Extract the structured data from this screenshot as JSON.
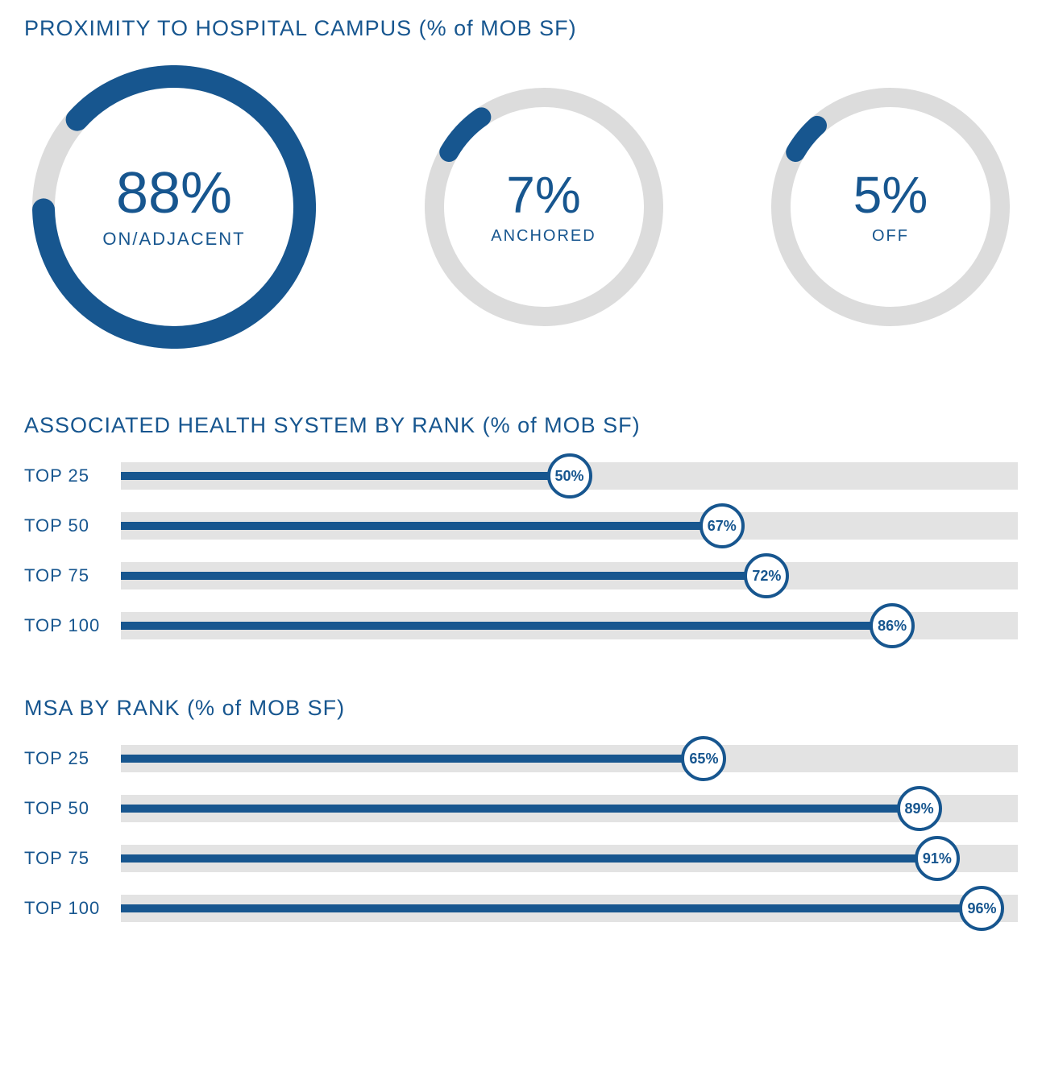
{
  "colors": {
    "primary": "#17568f",
    "track": "#e3e3e3",
    "donut_bg": "#dcdcdc",
    "white": "#ffffff"
  },
  "proximity": {
    "title": "PROXIMITY TO HOSPITAL CAMPUS (% of MOB SF)",
    "donut_style": {
      "track_width_main": 28,
      "track_width_sub": 24,
      "start_angle_deg": -60,
      "gap_deg_main": 12,
      "gap_deg_sub": 0
    },
    "items": [
      {
        "value": 88,
        "display": "88%",
        "label": "ON/ADJACENT",
        "diameter": 352,
        "value_fontsize": 72,
        "label_fontsize": 22,
        "is_main": true
      },
      {
        "value": 7,
        "display": "7%",
        "label": "ANCHORED",
        "diameter": 296,
        "value_fontsize": 64,
        "label_fontsize": 20,
        "is_main": false
      },
      {
        "value": 5,
        "display": "5%",
        "label": "OFF",
        "diameter": 296,
        "value_fontsize": 64,
        "label_fontsize": 20,
        "is_main": false
      }
    ]
  },
  "health_system": {
    "title": "ASSOCIATED HEALTH SYSTEM BY RANK (% of MOB SF)",
    "bar_style": {
      "track_height": 34,
      "fill_height": 10,
      "marker_diameter": 56,
      "marker_border": 4,
      "label_width": 120
    },
    "rows": [
      {
        "label": "TOP 25",
        "value": 50,
        "display": "50%"
      },
      {
        "label": "TOP 50",
        "value": 67,
        "display": "67%"
      },
      {
        "label": "TOP 75",
        "value": 72,
        "display": "72%"
      },
      {
        "label": "TOP 100",
        "value": 86,
        "display": "86%"
      }
    ]
  },
  "msa": {
    "title": "MSA BY RANK (% of MOB SF)",
    "bar_style": {
      "track_height": 34,
      "fill_height": 10,
      "marker_diameter": 56,
      "marker_border": 4,
      "label_width": 120
    },
    "rows": [
      {
        "label": "TOP 25",
        "value": 65,
        "display": "65%"
      },
      {
        "label": "TOP 50",
        "value": 89,
        "display": "89%"
      },
      {
        "label": "TOP 75",
        "value": 91,
        "display": "91%"
      },
      {
        "label": "TOP 100",
        "value": 96,
        "display": "96%"
      }
    ]
  }
}
